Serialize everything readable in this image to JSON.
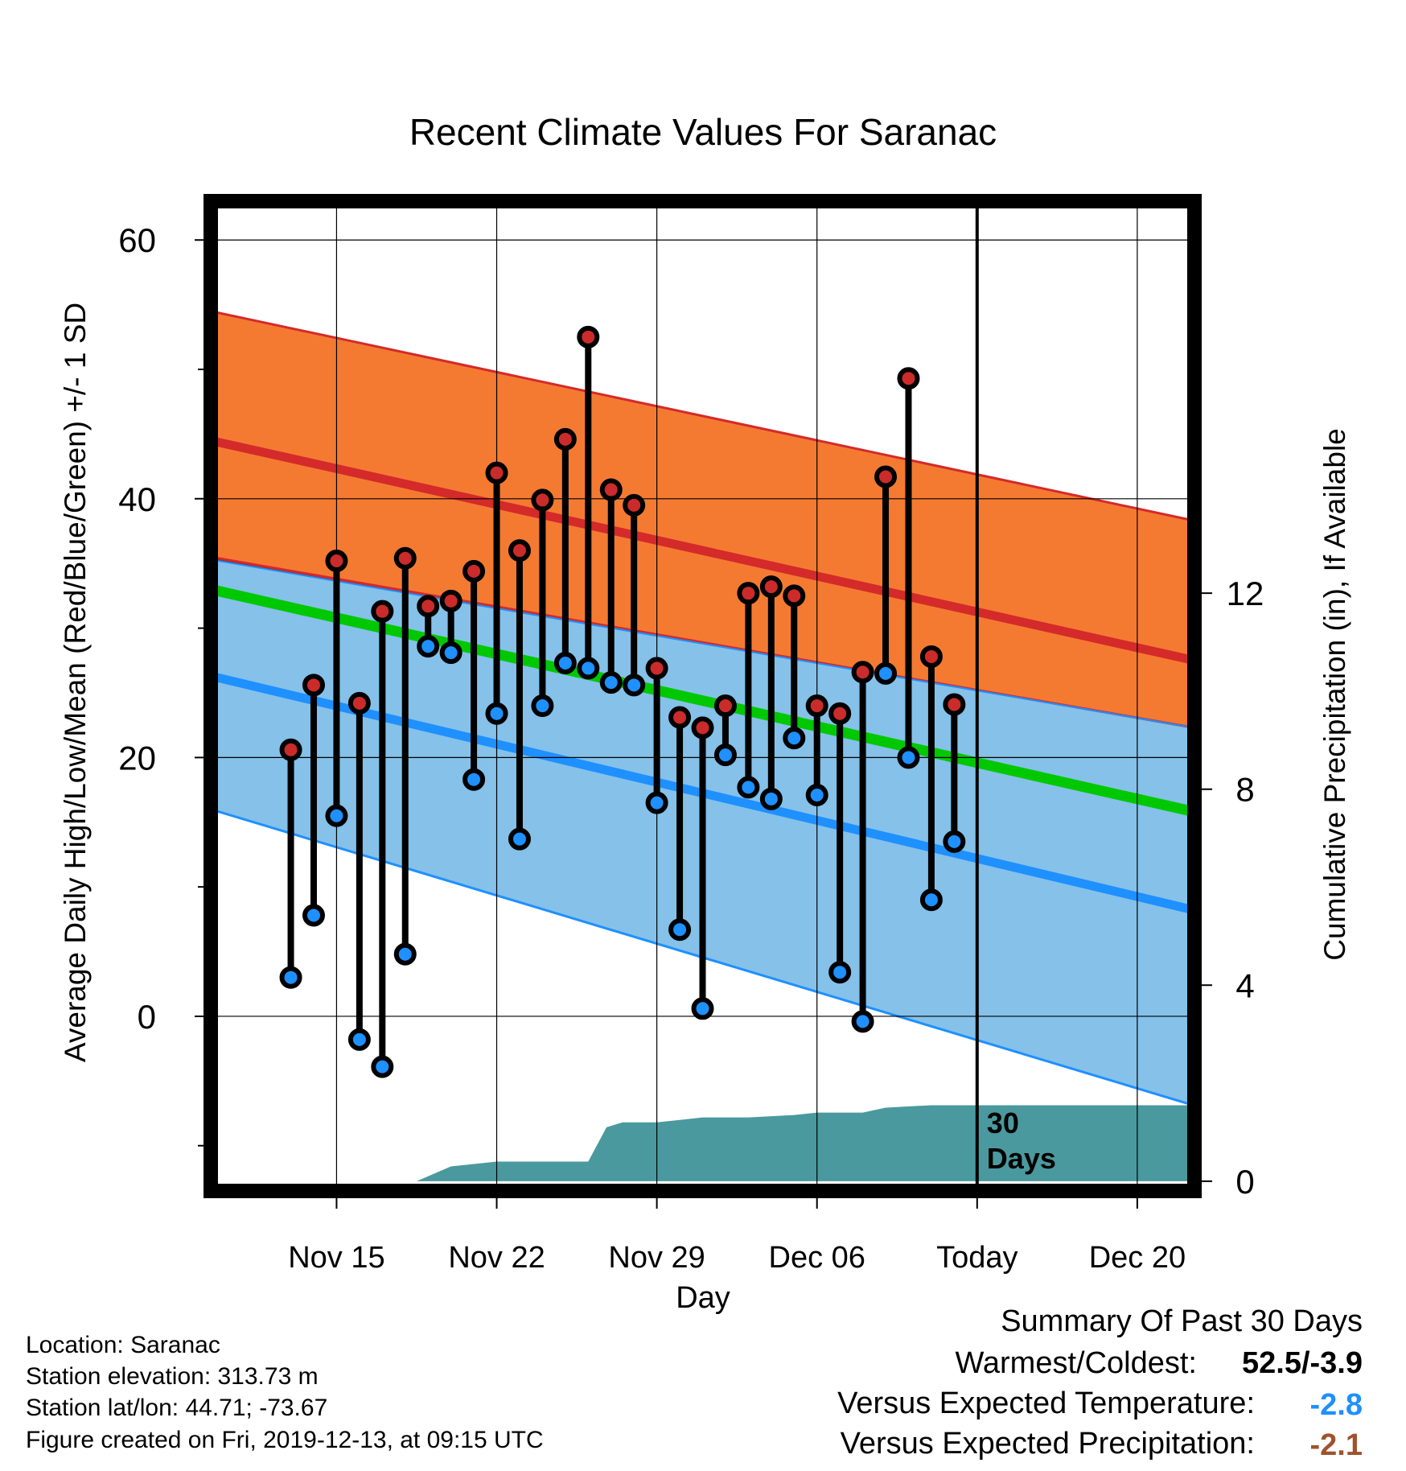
{
  "chart_data": {
    "type": "line",
    "title": "Recent Climate Values For Saranac",
    "xlabel": "Day",
    "ylabel": "Average Daily High/Low/Mean (Red/Blue/Green) +/- 1 SD",
    "y2label": "Cumulative Precipitation (in), If Available",
    "ylim": [
      -13.5,
      63
    ],
    "y2lim": [
      -0.2,
      20
    ],
    "x_range_days": [
      -33.5,
      9.5
    ],
    "grid": true,
    "x_ticks": [
      {
        "day": -28,
        "label": "Nov 15"
      },
      {
        "day": -21,
        "label": "Nov 22"
      },
      {
        "day": -14,
        "label": "Nov 29"
      },
      {
        "day": -7,
        "label": "Dec 06"
      },
      {
        "day": 0,
        "label": "Today"
      },
      {
        "day": 7,
        "label": "Dec 20"
      }
    ],
    "y_ticks": [
      0,
      20,
      40,
      60
    ],
    "y2_ticks": [
      0,
      4,
      8,
      12
    ],
    "today_marker": {
      "day": 0,
      "label_line1": "30",
      "label_line2": "Days"
    },
    "normals": {
      "days": [
        -33.5,
        9.5
      ],
      "high_mean": [
        44.5,
        27.5
      ],
      "high_upper": [
        54.5,
        38.3
      ],
      "high_lower": [
        35.5,
        22.3
      ],
      "low_mean": [
        26.3,
        8.2
      ],
      "low_upper": [
        35.3,
        22.3
      ],
      "low_lower": [
        16.0,
        -6.9
      ],
      "avg_mean": [
        33.0,
        15.8
      ]
    },
    "series": [
      {
        "name": "High",
        "color": "#cc2b2b",
        "values": [
          20.6,
          25.6,
          35.2,
          24.2,
          31.3,
          35.4,
          31.7,
          32.1,
          34.4,
          42.0,
          36.0,
          39.9,
          44.6,
          52.5,
          40.7,
          39.5,
          26.9,
          23.1,
          22.3,
          24.0,
          32.7,
          33.2,
          32.5,
          24.0,
          23.4,
          26.6,
          41.7,
          49.3,
          27.8,
          24.1
        ]
      },
      {
        "name": "Low",
        "color": "#1e90ff",
        "values": [
          3.0,
          7.8,
          15.5,
          -1.8,
          -3.9,
          4.8,
          28.6,
          28.1,
          18.3,
          23.4,
          13.7,
          24.0,
          27.3,
          26.9,
          25.8,
          25.6,
          16.5,
          6.7,
          0.6,
          20.2,
          17.7,
          16.8,
          21.5,
          17.1,
          3.4,
          -0.4,
          26.5,
          20.0,
          9.0,
          13.5
        ]
      }
    ],
    "days": [
      -30,
      -29,
      -28,
      -27,
      -26,
      -25,
      -24,
      -23,
      -22,
      -21,
      -20,
      -19,
      -18,
      -17,
      -16,
      -15,
      -14,
      -13,
      -12,
      -11,
      -10,
      -9,
      -8,
      -7,
      -6,
      -5,
      -4,
      -3,
      -2,
      -1
    ],
    "precipitation": {
      "days": [
        -33.5,
        -27,
        -26,
        -25,
        -24.5,
        -23,
        -21,
        -19,
        -17,
        -16.2,
        -15.5,
        -14,
        -13,
        -12,
        -10,
        -8,
        -7,
        -5,
        -4,
        -2,
        9.5
      ],
      "cumulative": [
        0,
        0,
        0,
        0,
        0,
        0.3,
        0.4,
        0.4,
        0.4,
        1.1,
        1.2,
        1.2,
        1.25,
        1.3,
        1.3,
        1.35,
        1.4,
        1.4,
        1.5,
        1.55,
        1.55
      ]
    },
    "colors": {
      "high_band": "#f47a32",
      "high_line": "#d42a2a",
      "overlap_band": "#8e161b",
      "low_band": "#85c1e9",
      "low_line": "#1e90ff",
      "avg_line": "#00c800",
      "precip": "#4a999e",
      "warm_value": "#1e90ff",
      "precip_value": "#a0522d"
    }
  },
  "info": {
    "location": "Location: Saranac",
    "elevation": "Station elevation: 313.73 m",
    "latlon": "Station lat/lon: 44.71; -73.67",
    "created": "Figure created on Fri, 2019-12-13, at 09:15 UTC"
  },
  "summary": {
    "title": "Summary Of Past 30 Days",
    "warmest_label": "Warmest/Coldest:",
    "warmest_value": "52.5/-3.9",
    "temp_label": "Versus Expected Temperature:",
    "temp_value": "-2.8",
    "precip_label": "Versus Expected Precipitation:",
    "precip_value": "-2.1"
  }
}
